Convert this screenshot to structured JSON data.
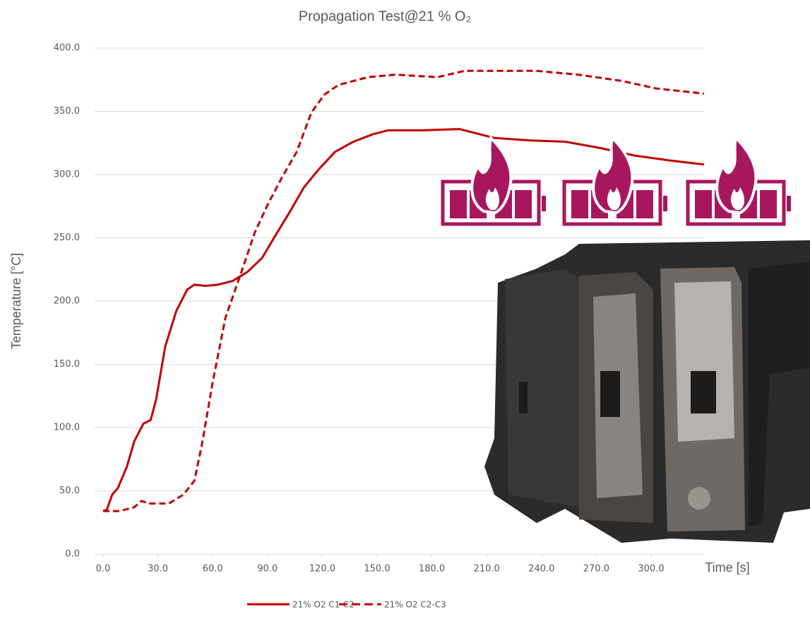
{
  "chart_data": {
    "type": "line",
    "title": "Propagation Test@21 % O₂",
    "x_label": "Time [s]",
    "y_label": "Temperature [°C]",
    "xlim": [
      0,
      329
    ],
    "ylim": [
      0,
      400
    ],
    "xticks": [
      {
        "value": 0,
        "label": "0.0"
      },
      {
        "value": 30,
        "label": "30.0"
      },
      {
        "value": 60,
        "label": "60.0"
      },
      {
        "value": 90,
        "label": "90.0"
      },
      {
        "value": 120,
        "label": "120.0"
      },
      {
        "value": 150,
        "label": "150.0"
      },
      {
        "value": 180,
        "label": "180.0"
      },
      {
        "value": 210,
        "label": "210.0"
      },
      {
        "value": 240,
        "label": "240.0"
      },
      {
        "value": 270,
        "label": "270.0"
      },
      {
        "value": 300,
        "label": "300.0"
      }
    ],
    "yticks": [
      {
        "value": 0,
        "label": "0.0"
      },
      {
        "value": 50,
        "label": "50.0"
      },
      {
        "value": 100,
        "label": "100.0"
      },
      {
        "value": 150,
        "label": "150.0"
      },
      {
        "value": 200,
        "label": "200.0"
      },
      {
        "value": 250,
        "label": "250.0"
      },
      {
        "value": 300,
        "label": "300.0"
      },
      {
        "value": 350,
        "label": "350.0"
      },
      {
        "value": 400,
        "label": "400.0"
      }
    ],
    "grid": true,
    "legend": "bottom",
    "series": [
      {
        "name": "21% O2 C1-C2",
        "color": "#c00000",
        "style": "solid",
        "x": [
          0,
          2,
          5,
          8,
          13,
          17,
          22,
          26,
          29,
          34,
          40,
          46,
          50,
          56,
          63,
          71,
          79,
          87,
          94,
          102,
          110,
          118,
          127,
          137,
          148,
          156,
          175,
          195,
          214,
          234,
          253,
          272,
          291,
          311,
          329
        ],
        "values": [
          34,
          35,
          47,
          52,
          69,
          89,
          103,
          106,
          122,
          164,
          192,
          209,
          213,
          212,
          213,
          216,
          223,
          234,
          251,
          270,
          290,
          304,
          318,
          326,
          332,
          335,
          335,
          336,
          329,
          327,
          326,
          321,
          315,
          311,
          308
        ]
      },
      {
        "name": "21% O2 C2-C3",
        "color": "#c00000",
        "style": "dashed",
        "x": [
          0,
          9,
          17,
          21,
          25,
          36,
          44,
          50,
          54,
          60,
          67,
          75,
          83,
          90,
          98,
          106,
          114,
          121,
          129,
          145,
          160,
          183,
          198,
          214,
          237,
          260,
          284,
          303,
          329
        ],
        "values": [
          34,
          34,
          37,
          42,
          40,
          40,
          47,
          58,
          86,
          136,
          187,
          220,
          254,
          276,
          298,
          318,
          349,
          363,
          371,
          377,
          379,
          377,
          382,
          382,
          382,
          379,
          374,
          368,
          364
        ]
      }
    ]
  }
}
